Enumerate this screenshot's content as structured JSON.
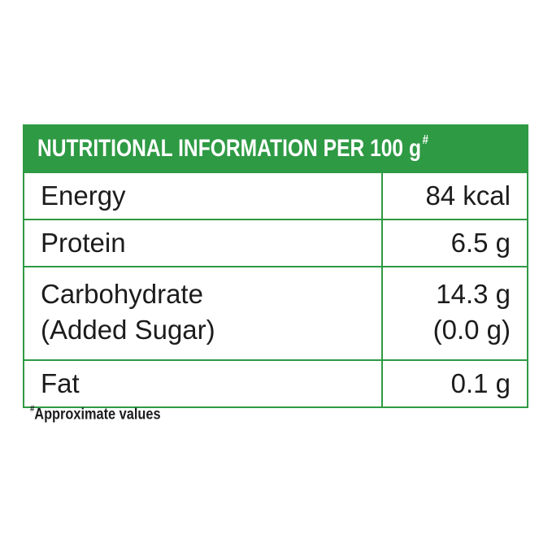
{
  "header": {
    "title": "NUTRITIONAL INFORMATION PER 100 g",
    "title_mark": "#"
  },
  "rows": [
    {
      "label": "Energy",
      "value": "84 kcal"
    },
    {
      "label": "Protein",
      "value": "6.5 g"
    },
    {
      "label": "Carbohydrate",
      "sub_label": "(Added Sugar)",
      "value": "14.3 g",
      "sub_value": "(0.0 g)"
    },
    {
      "label": "Fat",
      "value": "0.1 g"
    }
  ],
  "footnote": {
    "mark": "#",
    "text": "Approximate values"
  },
  "colors": {
    "accent": "#2e9a44",
    "text": "#1c1c1c",
    "background": "#ffffff"
  }
}
